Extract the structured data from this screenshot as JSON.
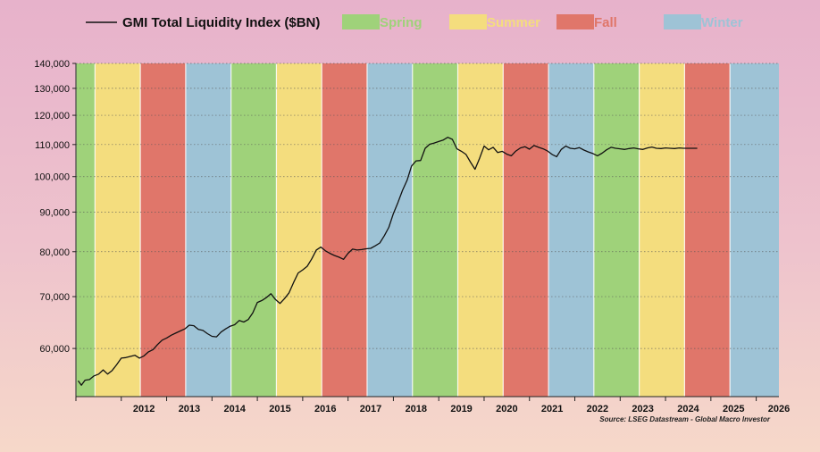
{
  "chart_data": {
    "type": "line",
    "title": "GMI Total Liquidity Index ($BN)",
    "source": "Source: LSEG Datastream - Global Macro Investor",
    "y_scale": "log",
    "ylim": [
      52000,
      140000
    ],
    "y_ticks": [
      {
        "value": 60000,
        "label": "60,000"
      },
      {
        "value": 70000,
        "label": "70,000"
      },
      {
        "value": 80000,
        "label": "80,000"
      },
      {
        "value": 90000,
        "label": "90,000"
      },
      {
        "value": 100000,
        "label": "100,000"
      },
      {
        "value": 110000,
        "label": "110,000"
      },
      {
        "value": 120000,
        "label": "120,000"
      },
      {
        "value": 130000,
        "label": "130,000"
      },
      {
        "value": 140000,
        "label": "140,000"
      }
    ],
    "xlim": [
      2011.0,
      2026.5
    ],
    "x_labels": [
      "2012",
      "2013",
      "2014",
      "2015",
      "2016",
      "2017",
      "2018",
      "2019",
      "2020",
      "2021",
      "2022",
      "2023",
      "2024",
      "2025",
      "2026"
    ],
    "legend": [
      {
        "name": "GMI Total Liquidity Index ($BN)",
        "kind": "line",
        "color": "#111111"
      },
      {
        "name": "Spring",
        "kind": "patch",
        "color": "#9fd27a"
      },
      {
        "name": "Summer",
        "kind": "patch",
        "color": "#f4dd7e"
      },
      {
        "name": "Fall",
        "kind": "patch",
        "color": "#e0766a"
      },
      {
        "name": "Winter",
        "kind": "patch",
        "color": "#9ec3d6"
      }
    ],
    "seasons": [
      {
        "season": "Spring",
        "start": 2011.0,
        "end": 2011.42
      },
      {
        "season": "Summer",
        "start": 2011.42,
        "end": 2012.42
      },
      {
        "season": "Fall",
        "start": 2012.42,
        "end": 2013.42
      },
      {
        "season": "Winter",
        "start": 2013.42,
        "end": 2014.42
      },
      {
        "season": "Spring",
        "start": 2014.42,
        "end": 2015.42
      },
      {
        "season": "Summer",
        "start": 2015.42,
        "end": 2016.42
      },
      {
        "season": "Fall",
        "start": 2016.42,
        "end": 2017.42
      },
      {
        "season": "Winter",
        "start": 2017.42,
        "end": 2018.42
      },
      {
        "season": "Spring",
        "start": 2018.42,
        "end": 2019.42
      },
      {
        "season": "Summer",
        "start": 2019.42,
        "end": 2020.42
      },
      {
        "season": "Fall",
        "start": 2020.42,
        "end": 2021.42
      },
      {
        "season": "Winter",
        "start": 2021.42,
        "end": 2022.42
      },
      {
        "season": "Spring",
        "start": 2022.42,
        "end": 2023.42
      },
      {
        "season": "Summer",
        "start": 2023.42,
        "end": 2024.42
      },
      {
        "season": "Fall",
        "start": 2024.42,
        "end": 2025.42
      },
      {
        "season": "Winter",
        "start": 2025.42,
        "end": 2026.5
      }
    ],
    "series": [
      {
        "name": "GMI Total Liquidity Index ($BN)",
        "color": "#111111",
        "x": [
          2011.05,
          2011.12,
          2011.2,
          2011.3,
          2011.4,
          2011.5,
          2011.6,
          2011.7,
          2011.8,
          2011.9,
          2012.0,
          2012.1,
          2012.2,
          2012.3,
          2012.4,
          2012.5,
          2012.6,
          2012.7,
          2012.8,
          2012.9,
          2013.0,
          2013.1,
          2013.2,
          2013.3,
          2013.4,
          2013.5,
          2013.6,
          2013.7,
          2013.8,
          2013.9,
          2014.0,
          2014.1,
          2014.2,
          2014.3,
          2014.4,
          2014.5,
          2014.6,
          2014.7,
          2014.8,
          2014.9,
          2015.0,
          2015.1,
          2015.2,
          2015.3,
          2015.4,
          2015.5,
          2015.6,
          2015.7,
          2015.8,
          2015.9,
          2016.0,
          2016.1,
          2016.2,
          2016.3,
          2016.4,
          2016.5,
          2016.6,
          2016.7,
          2016.8,
          2016.9,
          2017.0,
          2017.1,
          2017.2,
          2017.3,
          2017.4,
          2017.5,
          2017.6,
          2017.7,
          2017.8,
          2017.9,
          2018.0,
          2018.1,
          2018.2,
          2018.3,
          2018.4,
          2018.5,
          2018.6,
          2018.7,
          2018.8,
          2018.9,
          2019.0,
          2019.1,
          2019.2,
          2019.3,
          2019.4,
          2019.5,
          2019.6,
          2019.7,
          2019.8,
          2019.9,
          2020.0,
          2020.1,
          2020.2,
          2020.3,
          2020.4,
          2020.5,
          2020.6,
          2020.7,
          2020.8,
          2020.9,
          2021.0,
          2021.1,
          2021.2,
          2021.3,
          2021.4,
          2021.5,
          2021.6,
          2021.7,
          2021.8,
          2021.9,
          2022.0,
          2022.1,
          2022.2,
          2022.3,
          2022.4,
          2022.5,
          2022.6,
          2022.7,
          2022.8,
          2022.9,
          2023.0,
          2023.1,
          2023.2,
          2023.3,
          2023.4,
          2023.5,
          2023.6,
          2023.7,
          2023.8,
          2023.9,
          2024.0,
          2024.1,
          2024.2,
          2024.3,
          2024.4,
          2024.5,
          2024.6,
          2024.7
        ],
        "values": [
          54500,
          53800,
          54600,
          54700,
          55300,
          55600,
          56300,
          55600,
          56200,
          57200,
          58300,
          58400,
          58600,
          58800,
          58300,
          58700,
          59400,
          59800,
          60700,
          61500,
          61900,
          62400,
          62800,
          63200,
          63600,
          64300,
          64200,
          63500,
          63300,
          62700,
          62200,
          62100,
          63000,
          63600,
          64100,
          64400,
          65200,
          64900,
          65400,
          66700,
          68800,
          69200,
          69800,
          70600,
          69400,
          68600,
          69600,
          70800,
          73000,
          75100,
          75800,
          76600,
          78300,
          80400,
          81100,
          80200,
          79600,
          79100,
          78700,
          78200,
          79600,
          80600,
          80400,
          80500,
          80700,
          80800,
          81400,
          82100,
          83900,
          86000,
          89600,
          92600,
          96000,
          98900,
          103200,
          104800,
          104900,
          108800,
          110100,
          110500,
          111000,
          111500,
          112400,
          111700,
          108600,
          107800,
          106800,
          104400,
          102200,
          105600,
          109500,
          108300,
          109100,
          107400,
          107800,
          106900,
          106400,
          107900,
          108900,
          109300,
          108500,
          109700,
          109100,
          108600,
          107900,
          106800,
          106100,
          108400,
          109500,
          108800,
          108600,
          109000,
          108200,
          107600,
          107100,
          106400,
          107200,
          108300,
          109100,
          108800,
          108600,
          108400,
          108700,
          108900,
          108600,
          108400,
          108900,
          109200,
          108800,
          108700,
          108900,
          108800,
          108700,
          108900,
          108800,
          108800,
          108800,
          108800
        ]
      }
    ]
  }
}
